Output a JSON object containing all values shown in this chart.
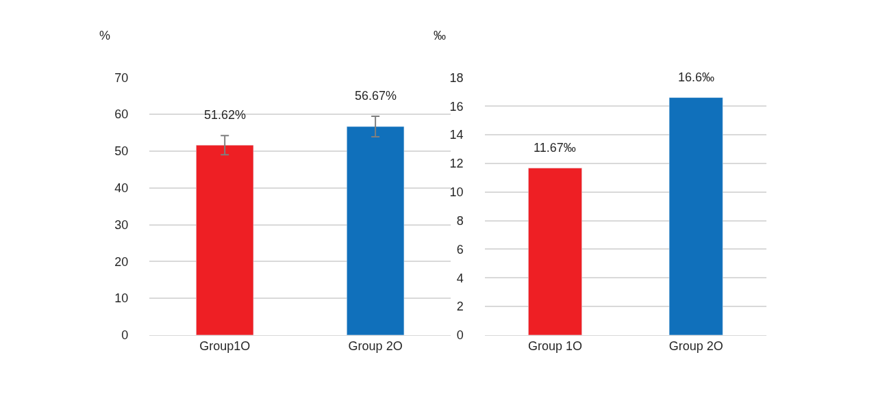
{
  "chart_data": [
    {
      "type": "bar",
      "ylabel": "%",
      "categories": [
        "Group1O",
        "Group 2O"
      ],
      "values": [
        51.62,
        56.67
      ],
      "colors": [
        "#ee1f24",
        "#1070bb"
      ],
      "errors": [
        2.6,
        2.8
      ],
      "value_labels": [
        "51.62%",
        "56.67%"
      ],
      "ylim": [
        0,
        70
      ],
      "yticks": [
        0,
        10,
        20,
        30,
        40,
        50,
        60,
        70
      ],
      "grid": "y",
      "legend": false
    },
    {
      "type": "bar",
      "ylabel": "‰",
      "categories": [
        "Group 1O",
        "Group 2O"
      ],
      "values": [
        11.67,
        16.6
      ],
      "colors": [
        "#ee1f24",
        "#1070bb"
      ],
      "value_labels": [
        "11.67‰",
        "16.6‰"
      ],
      "ylim": [
        0,
        18
      ],
      "yticks": [
        0,
        2,
        4,
        6,
        8,
        10,
        12,
        14,
        16,
        18
      ],
      "grid": "y",
      "legend": false
    }
  ]
}
